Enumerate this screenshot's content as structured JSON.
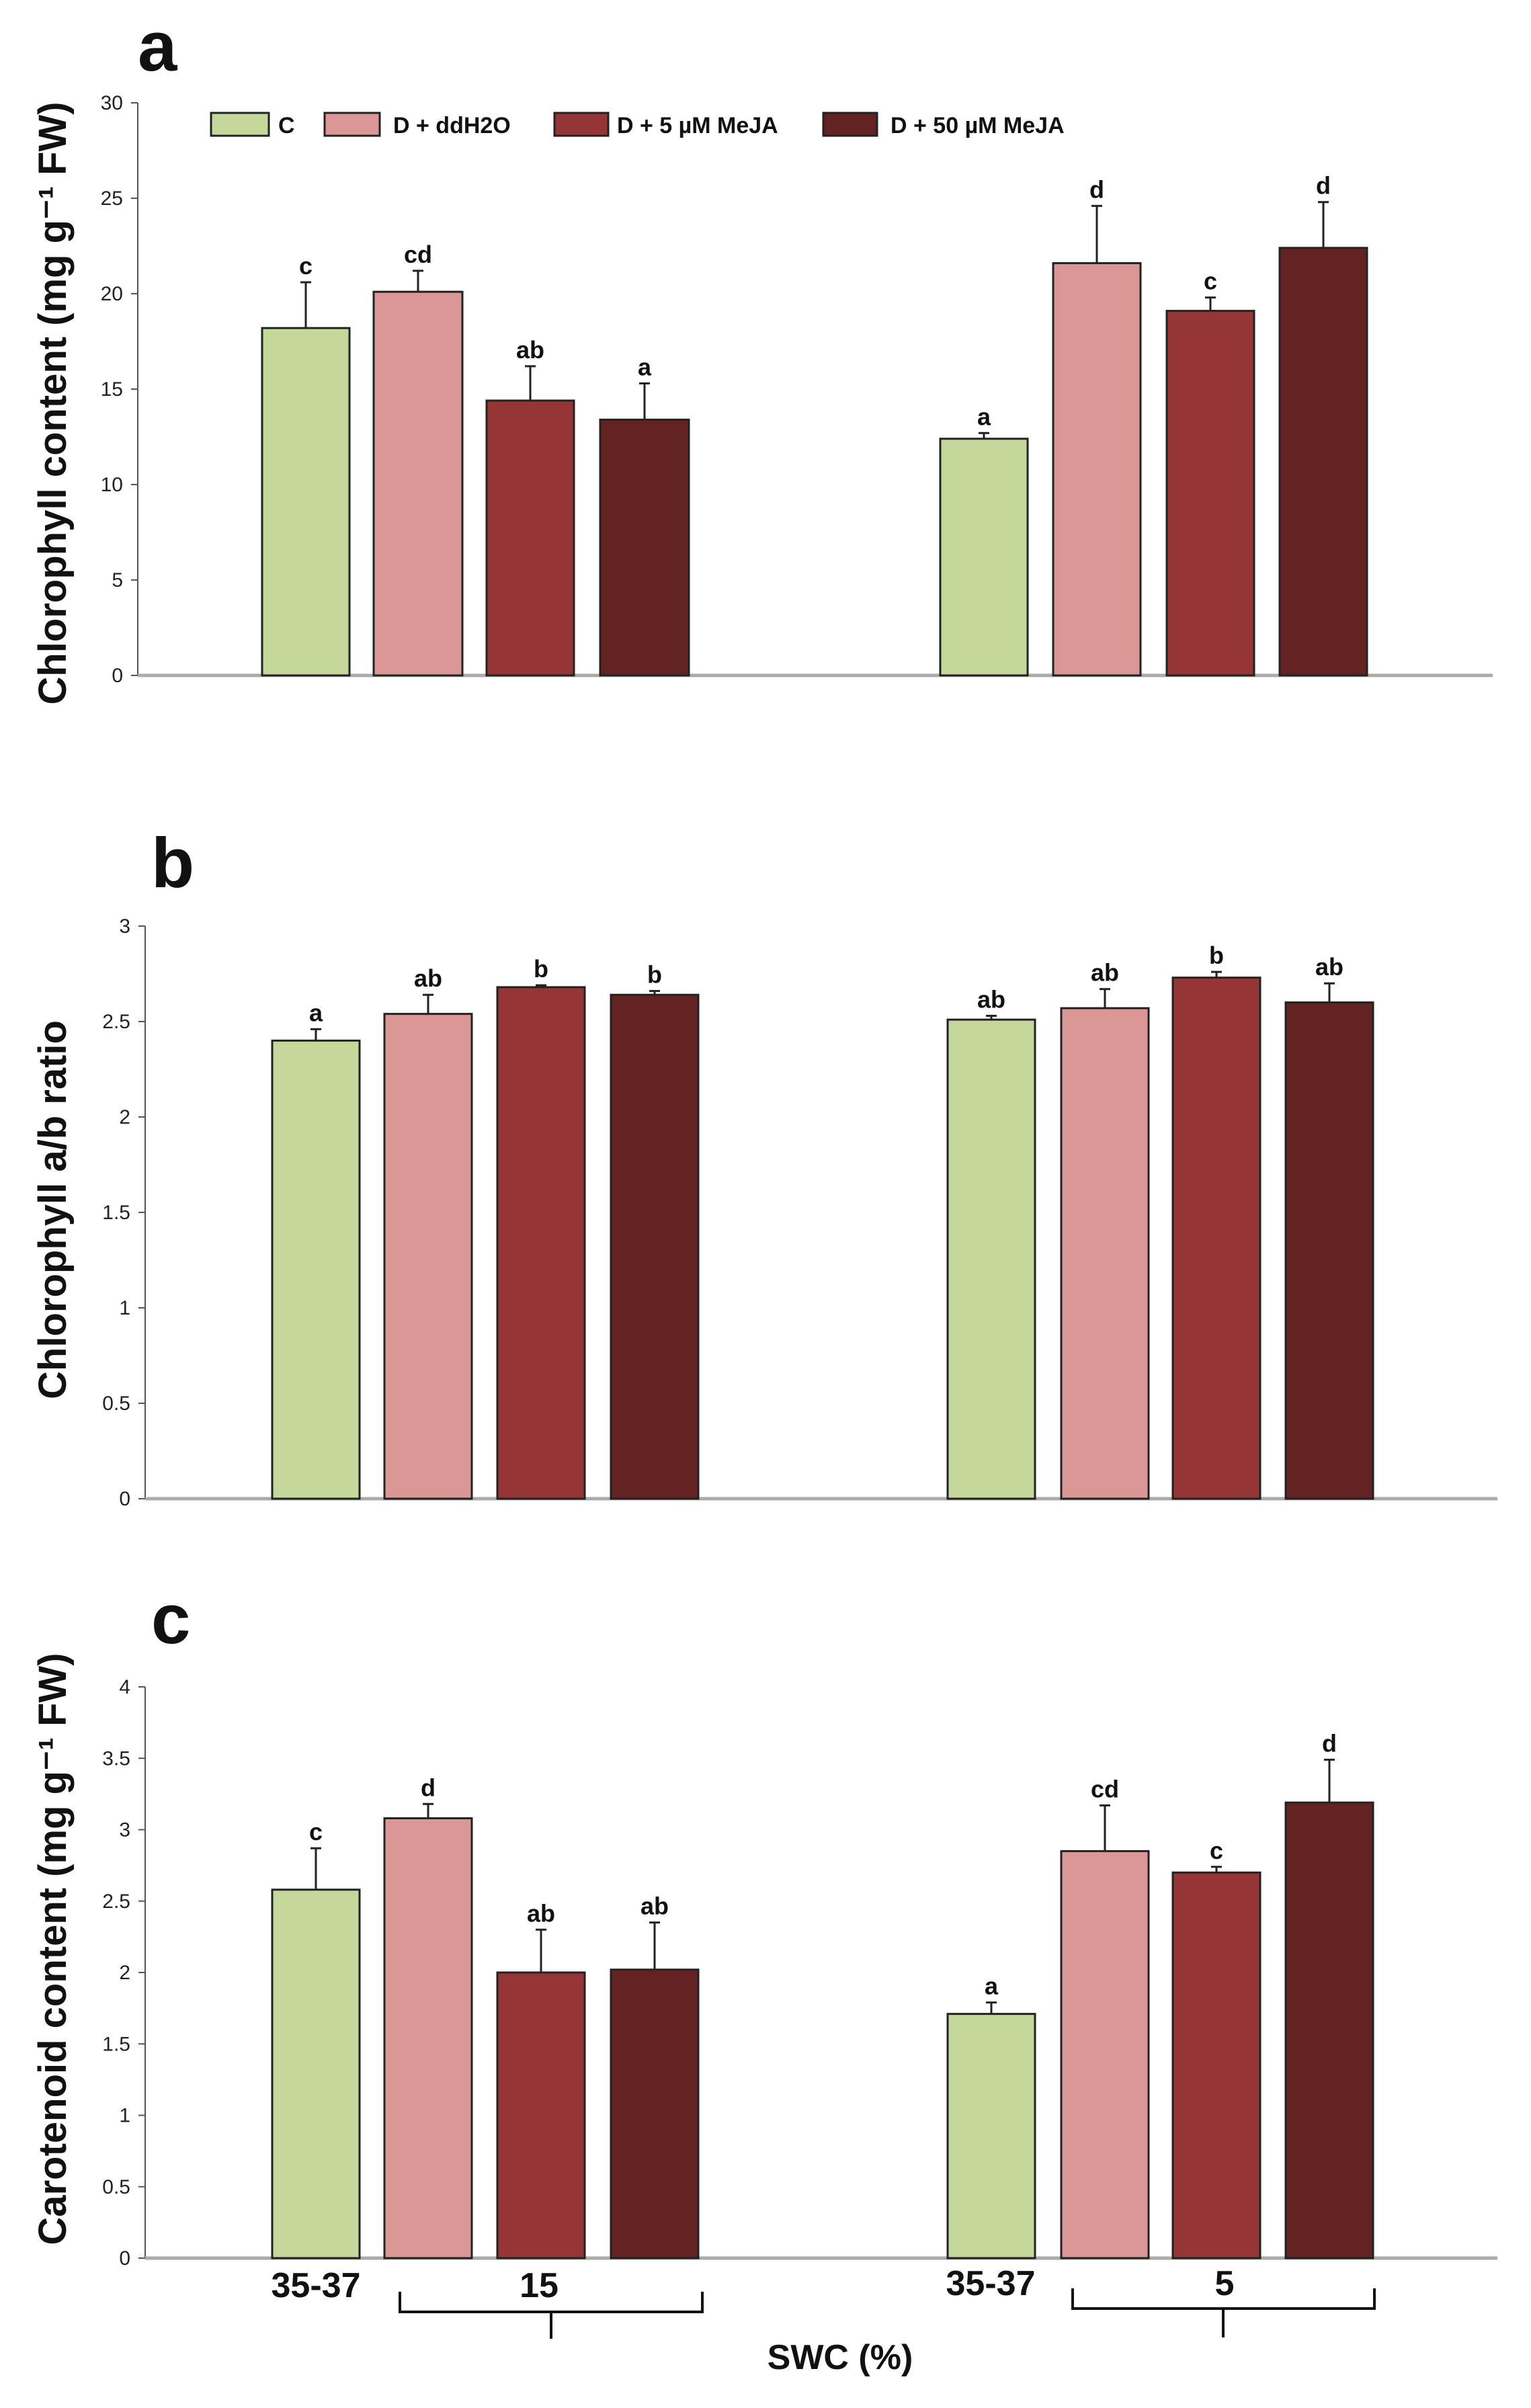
{
  "legend": [
    {
      "label": "C",
      "color": "#c5d89b"
    },
    {
      "label": "D + ddH2O",
      "color": "#db9696"
    },
    {
      "label": "D + 5 µM MeJA",
      "color": "#953535"
    },
    {
      "label": "D + 50 µM MeJA",
      "color": "#642323"
    }
  ],
  "x_axis": {
    "categories": [
      "35-37",
      "15",
      "35-37",
      "5"
    ],
    "label": "SWC (%)"
  },
  "chart_data": [
    {
      "type": "bar",
      "panel": "a",
      "ylabel": "Chlorophyll content (mg g⁻¹ FW)",
      "ylim": [
        0,
        30
      ],
      "yticks": [
        "0",
        "5",
        "10",
        "15",
        "20",
        "25",
        "30"
      ],
      "groups": [
        "15",
        "5"
      ],
      "series": [
        {
          "name": "C",
          "values": [
            18.2,
            12.4
          ],
          "errors": [
            2.4,
            0.3
          ],
          "letters": [
            "c",
            "a"
          ]
        },
        {
          "name": "D + ddH2O",
          "values": [
            20.1,
            21.6
          ],
          "errors": [
            1.1,
            3.0
          ],
          "letters": [
            "cd",
            "d"
          ]
        },
        {
          "name": "D + 5 µM MeJA",
          "values": [
            14.4,
            19.1
          ],
          "errors": [
            1.8,
            0.7
          ],
          "letters": [
            "ab",
            "c"
          ]
        },
        {
          "name": "D + 50 µM MeJA",
          "values": [
            13.4,
            22.4
          ],
          "errors": [
            1.9,
            2.4
          ],
          "letters": [
            "a",
            "d"
          ]
        }
      ]
    },
    {
      "type": "bar",
      "panel": "b",
      "ylabel": "Chlorophyll a/b ratio",
      "ylim": [
        0,
        3
      ],
      "yticks": [
        "0",
        "0.5",
        "1",
        "1.5",
        "2",
        "2.5",
        "3"
      ],
      "groups": [
        "15",
        "5"
      ],
      "series": [
        {
          "name": "C",
          "values": [
            2.4,
            2.51
          ],
          "errors": [
            0.06,
            0.02
          ],
          "letters": [
            "a",
            "ab"
          ]
        },
        {
          "name": "D + ddH2O",
          "values": [
            2.54,
            2.57
          ],
          "errors": [
            0.1,
            0.1
          ],
          "letters": [
            "ab",
            "ab"
          ]
        },
        {
          "name": "D + 5 µM MeJA",
          "values": [
            2.68,
            2.73
          ],
          "errors": [
            0.01,
            0.03
          ],
          "letters": [
            "b",
            "b"
          ]
        },
        {
          "name": "D + 50 µM MeJA",
          "values": [
            2.64,
            2.6
          ],
          "errors": [
            0.02,
            0.1
          ],
          "letters": [
            "b",
            "ab"
          ]
        }
      ]
    },
    {
      "type": "bar",
      "panel": "c",
      "ylabel": "Carotenoid content (mg g⁻¹ FW)",
      "ylim": [
        0,
        4
      ],
      "yticks": [
        "0",
        "0.5",
        "1",
        "1.5",
        "2",
        "2.5",
        "3",
        "3.5",
        "4"
      ],
      "groups": [
        "15",
        "5"
      ],
      "series": [
        {
          "name": "C",
          "values": [
            2.58,
            1.71
          ],
          "errors": [
            0.29,
            0.08
          ],
          "letters": [
            "c",
            "a"
          ]
        },
        {
          "name": "D + ddH2O",
          "values": [
            3.08,
            2.85
          ],
          "errors": [
            0.1,
            0.32
          ],
          "letters": [
            "d",
            "cd"
          ]
        },
        {
          "name": "D + 5 µM MeJA",
          "values": [
            2.0,
            2.7
          ],
          "errors": [
            0.3,
            0.04
          ],
          "letters": [
            "ab",
            "c"
          ]
        },
        {
          "name": "D + 50 µM MeJA",
          "values": [
            2.02,
            3.19
          ],
          "errors": [
            0.33,
            0.3
          ],
          "letters": [
            "ab",
            "d"
          ]
        }
      ]
    }
  ]
}
